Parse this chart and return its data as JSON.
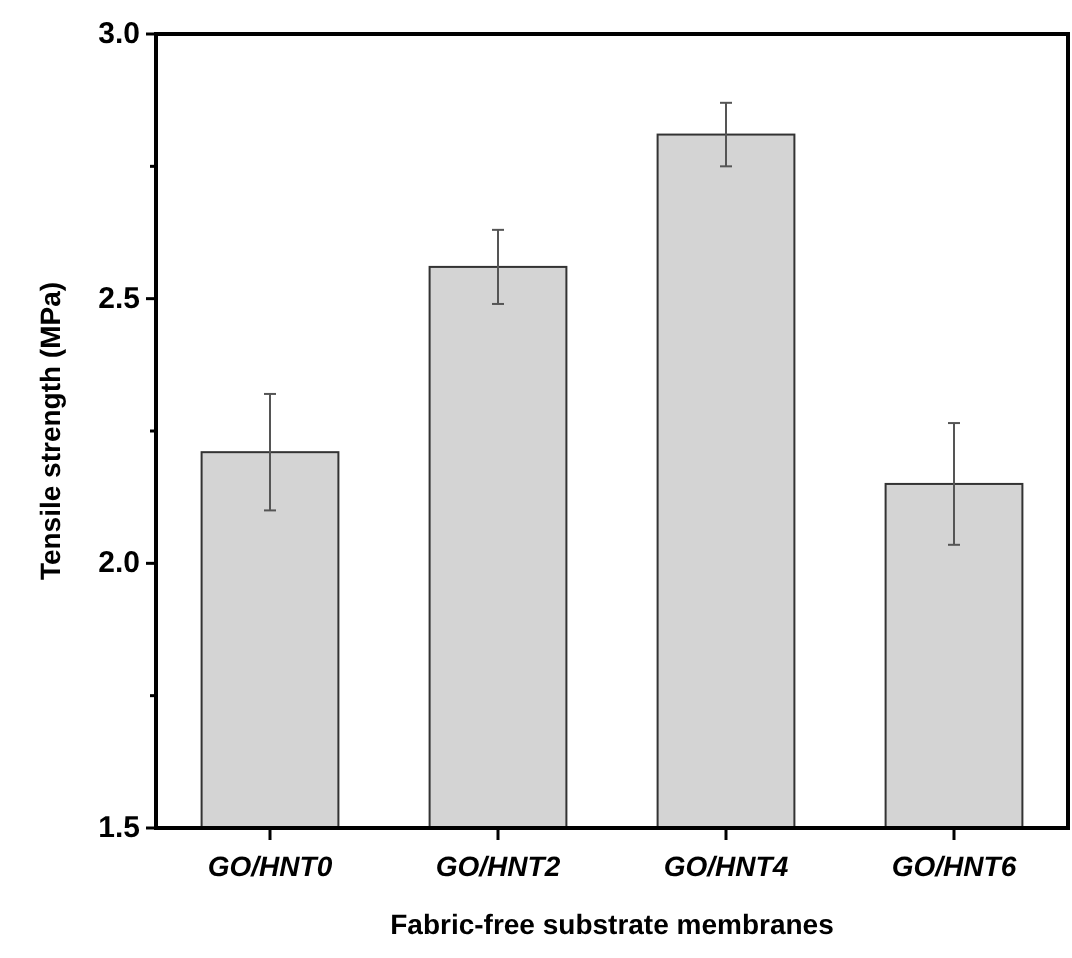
{
  "chart_data": {
    "type": "bar",
    "xlabel": "Fabric-free substrate membranes",
    "ylabel": "Tensile strength (MPa)",
    "categories": [
      "GO/HNT0",
      "GO/HNT2",
      "GO/HNT4",
      "GO/HNT6"
    ],
    "values": [
      2.21,
      2.56,
      2.81,
      2.15
    ],
    "errors": [
      0.11,
      0.07,
      0.06,
      0.115
    ],
    "color": "#d4d4d4",
    "ylim": [
      1.5,
      3.0
    ],
    "yticks": [
      1.5,
      {
        "value": 1.75,
        "label": null
      },
      {
        "value": 2,
        "label": "2.0"
      },
      {
        "value": 2.25,
        "label": null
      },
      2.5,
      {
        "value": 2.75,
        "label": null
      },
      {
        "value": 3,
        "label": "3.0"
      }
    ]
  }
}
